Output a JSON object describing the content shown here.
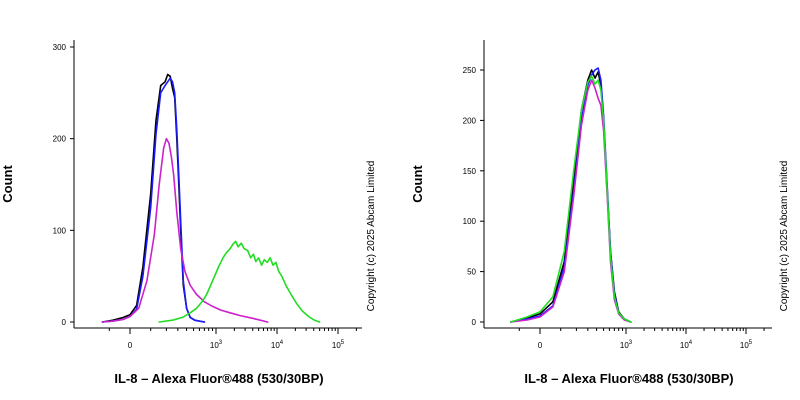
{
  "chart_data": [
    {
      "type": "line",
      "panel": "left",
      "title": "",
      "xlabel": "IL-8 – Alexa Fluor®488 (530/30BP)",
      "ylabel": "Count",
      "copyright": "Copyright (c) 2025 Abcam Limited",
      "x_scale": "biexponential",
      "ylim": [
        0,
        300
      ],
      "y_ticks": [
        0,
        100,
        200,
        300
      ],
      "x_ticks": [
        {
          "value": 0,
          "label": "0"
        },
        {
          "value": 1000,
          "label": "10",
          "exp": "3"
        },
        {
          "value": 10000,
          "label": "10",
          "exp": "4"
        },
        {
          "value": 100000,
          "label": "10",
          "exp": "5"
        }
      ],
      "grid": false,
      "series": [
        {
          "color": "#000000",
          "x": [
            -140,
            -80,
            -30,
            0,
            30,
            60,
            100,
            130,
            160,
            190,
            210,
            230,
            250,
            270,
            290,
            310,
            330,
            360,
            400,
            450,
            520,
            600,
            700
          ],
          "y": [
            0,
            2,
            5,
            8,
            18,
            60,
            140,
            220,
            258,
            262,
            270,
            268,
            255,
            245,
            200,
            150,
            100,
            40,
            15,
            5,
            2,
            1,
            0
          ]
        },
        {
          "color": "#1a1aff",
          "x": [
            -140,
            -80,
            -30,
            0,
            30,
            60,
            100,
            130,
            160,
            190,
            210,
            230,
            250,
            270,
            290,
            310,
            330,
            360,
            400,
            450,
            520,
            600,
            700
          ],
          "y": [
            0,
            1,
            3,
            6,
            14,
            50,
            125,
            205,
            250,
            258,
            262,
            266,
            262,
            250,
            210,
            160,
            110,
            45,
            15,
            5,
            2,
            1,
            0
          ]
        },
        {
          "color": "#cc22cc",
          "x": [
            -140,
            -80,
            -30,
            0,
            40,
            80,
            120,
            150,
            180,
            200,
            220,
            240,
            260,
            290,
            330,
            380,
            450,
            550,
            700,
            900,
            1200,
            1700,
            2500,
            4000,
            7000
          ],
          "y": [
            0,
            1,
            3,
            6,
            15,
            45,
            95,
            150,
            190,
            200,
            195,
            180,
            160,
            120,
            80,
            55,
            40,
            30,
            22,
            17,
            13,
            10,
            7,
            4,
            0
          ]
        },
        {
          "color": "#22dd22",
          "x": [
            150,
            250,
            350,
            450,
            550,
            650,
            750,
            900,
            1100,
            1300,
            1500,
            1700,
            1900,
            2100,
            2300,
            2600,
            2900,
            3300,
            3700,
            4100,
            4500,
            5000,
            5600,
            6200,
            6900,
            7700,
            8600,
            9600,
            10700,
            12000,
            14000,
            17000,
            21000,
            26000,
            33000,
            41000,
            50000
          ],
          "y": [
            0,
            2,
            5,
            10,
            15,
            22,
            30,
            45,
            60,
            70,
            76,
            80,
            85,
            88,
            82,
            86,
            80,
            78,
            70,
            74,
            66,
            70,
            62,
            68,
            65,
            70,
            62,
            65,
            55,
            50,
            40,
            30,
            20,
            12,
            6,
            2,
            0
          ]
        }
      ]
    },
    {
      "type": "line",
      "panel": "right",
      "title": "",
      "xlabel": "IL-8 – Alexa Fluor®488 (530/30BP)",
      "ylabel": "Count",
      "copyright": "Copyright (c) 2025 Abcam Limited",
      "x_scale": "biexponential",
      "ylim": [
        0,
        260
      ],
      "y_ticks": [
        0,
        50,
        100,
        150,
        200,
        250
      ],
      "x_ticks": [
        {
          "value": 0,
          "label": "0"
        },
        {
          "value": 1000,
          "label": "10",
          "exp": "3"
        },
        {
          "value": 10000,
          "label": "10",
          "exp": "4"
        },
        {
          "value": 100000,
          "label": "10",
          "exp": "5"
        }
      ],
      "grid": false,
      "series": [
        {
          "color": "#000000",
          "x": [
            -150,
            -60,
            0,
            60,
            120,
            180,
            240,
            300,
            340,
            380,
            420,
            460,
            500,
            560,
            620,
            700,
            800,
            950,
            1200
          ],
          "y": [
            0,
            4,
            8,
            20,
            60,
            140,
            210,
            240,
            250,
            242,
            248,
            235,
            200,
            130,
            70,
            30,
            10,
            3,
            0
          ]
        },
        {
          "color": "#1a1aff",
          "x": [
            -150,
            -60,
            0,
            60,
            120,
            180,
            240,
            300,
            340,
            380,
            420,
            460,
            500,
            560,
            620,
            700,
            800,
            950,
            1200
          ],
          "y": [
            0,
            3,
            6,
            16,
            55,
            130,
            200,
            235,
            245,
            250,
            252,
            240,
            205,
            135,
            70,
            28,
            9,
            3,
            0
          ]
        },
        {
          "color": "#cc22cc",
          "x": [
            -150,
            -60,
            0,
            60,
            120,
            180,
            240,
            300,
            340,
            380,
            420,
            460,
            500,
            560,
            620,
            700,
            800,
            950,
            1200
          ],
          "y": [
            0,
            2,
            5,
            15,
            50,
            125,
            195,
            230,
            240,
            232,
            222,
            215,
            190,
            125,
            60,
            22,
            8,
            2,
            0
          ]
        },
        {
          "color": "#22dd22",
          "x": [
            -150,
            -60,
            0,
            60,
            120,
            180,
            240,
            300,
            340,
            380,
            420,
            460,
            500,
            560,
            620,
            700,
            800,
            950,
            1200
          ],
          "y": [
            0,
            5,
            10,
            25,
            70,
            150,
            210,
            238,
            244,
            236,
            240,
            230,
            200,
            130,
            65,
            25,
            9,
            3,
            0
          ]
        }
      ]
    }
  ]
}
